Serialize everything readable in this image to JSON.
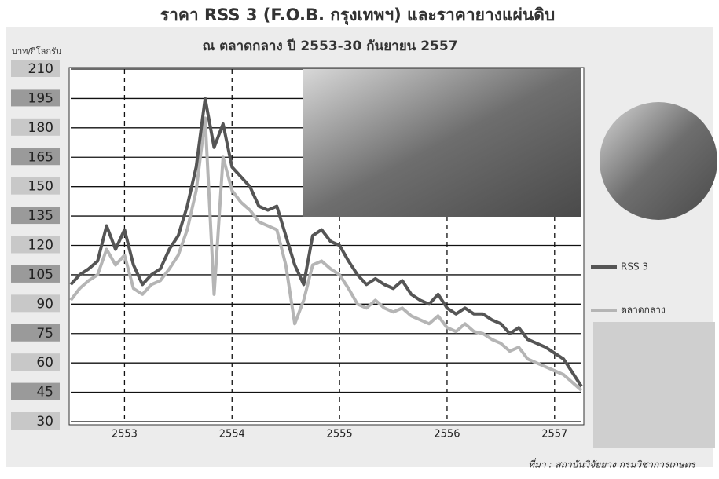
{
  "chart_data": {
    "type": "line",
    "title": "ราคา RSS 3 (F.O.B. กรุงเทพฯ) และราคายางแผ่นดิบ",
    "subtitle": "ณ ตลาดกลาง ปี 2553-30 กันยายน 2557",
    "y_label": "บาท/กิโลกรัม",
    "source": "ที่มา : สถาบันวิจัยยาง กรมวิชาการเกษตร",
    "categories": [
      null,
      null,
      null,
      null,
      null,
      null,
      "2553",
      null,
      null,
      null,
      null,
      null,
      null,
      null,
      null,
      null,
      null,
      null,
      "2554",
      null,
      null,
      null,
      null,
      null,
      null,
      null,
      null,
      null,
      null,
      null,
      "2555",
      null,
      null,
      null,
      null,
      null,
      null,
      null,
      null,
      null,
      null,
      null,
      "2556",
      null,
      null,
      null,
      null,
      null,
      null,
      null,
      null,
      null,
      null,
      null,
      "2557",
      null,
      null,
      null
    ],
    "series": [
      {
        "name": "RSS 3",
        "color": "#555555",
        "values": [
          100,
          105,
          108,
          112,
          130,
          118,
          128,
          110,
          100,
          105,
          108,
          118,
          125,
          140,
          160,
          195,
          170,
          182,
          160,
          155,
          150,
          140,
          138,
          140,
          125,
          110,
          100,
          125,
          128,
          122,
          120,
          112,
          105,
          100,
          103,
          100,
          98,
          102,
          95,
          92,
          90,
          95,
          88,
          85,
          88,
          85,
          85,
          82,
          80,
          75,
          78,
          72,
          70,
          68,
          65,
          62,
          55,
          48
        ]
      },
      {
        "name": "ตลาดกลาง",
        "color": "#b5b5b5",
        "values": [
          92,
          98,
          102,
          105,
          118,
          110,
          115,
          98,
          95,
          100,
          102,
          108,
          115,
          128,
          148,
          185,
          95,
          165,
          148,
          142,
          138,
          132,
          130,
          128,
          110,
          80,
          92,
          110,
          112,
          108,
          105,
          98,
          90,
          88,
          92,
          88,
          86,
          88,
          84,
          82,
          80,
          84,
          78,
          76,
          80,
          76,
          75,
          72,
          70,
          66,
          68,
          62,
          60,
          58,
          56,
          54,
          50,
          46
        ]
      }
    ],
    "ylim": [
      30,
      210
    ],
    "yticks": [
      30,
      45,
      60,
      75,
      90,
      105,
      120,
      135,
      150,
      165,
      180,
      195,
      210
    ],
    "grid": true,
    "legend": "right"
  }
}
